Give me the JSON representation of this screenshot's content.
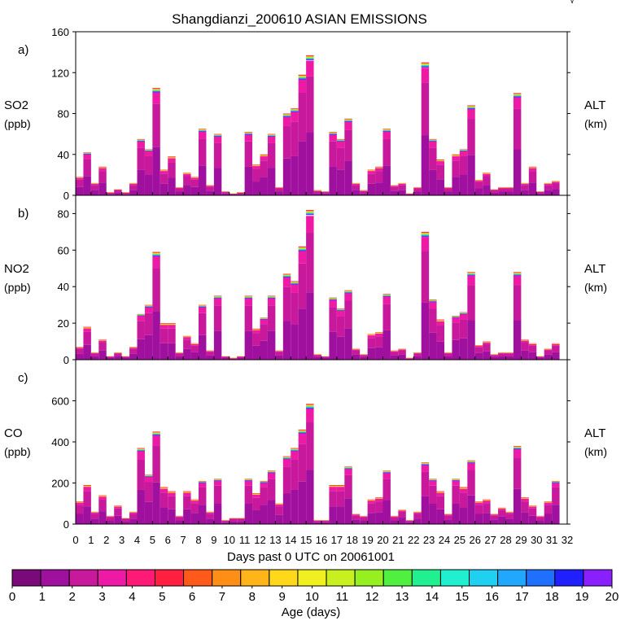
{
  "title": "Shangdianzi_200610 ASIAN EMISSIONS",
  "corner_mark": "√",
  "colorbar": {
    "label": "Age (days)",
    "ticks": [
      "0",
      "1",
      "2",
      "3",
      "4",
      "5",
      "6",
      "7",
      "8",
      "9",
      "10",
      "11",
      "12",
      "13",
      "14",
      "15",
      "16",
      "17",
      "18",
      "19",
      "20"
    ],
    "colors": [
      "#7a0a7a",
      "#a0109e",
      "#c8189c",
      "#ee1aa6",
      "#ff1a78",
      "#ff2040",
      "#ff5a1a",
      "#ff8e14",
      "#ffb41a",
      "#ffd81c",
      "#f0f020",
      "#c8f020",
      "#96f020",
      "#50f040",
      "#20f090",
      "#20f0d0",
      "#20d0f0",
      "#20a8ff",
      "#2070ff",
      "#2020ff",
      "#8a20ff"
    ]
  },
  "chart_data": [
    {
      "panel": "a)",
      "type": "bar",
      "title": "Shangdianzi_200610 ASIAN EMISSIONS",
      "ylabel": "SO2",
      "yunits": "(ppb)",
      "right_label": "ALT",
      "right_units": "(km)",
      "ylim": [
        0,
        160
      ],
      "yticks": [
        "0",
        "40",
        "80",
        "120",
        "160"
      ],
      "xlim": [
        0,
        32
      ],
      "x": [
        0,
        0.5,
        1,
        1.5,
        2,
        2.5,
        3,
        3.5,
        4,
        4.5,
        5,
        5.5,
        6,
        6.5,
        7,
        7.5,
        8,
        8.5,
        9,
        9.5,
        10,
        10.5,
        11,
        11.5,
        12,
        12.5,
        13,
        13.5,
        14,
        14.5,
        15,
        15.5,
        16,
        16.5,
        17,
        17.5,
        18,
        18.5,
        19,
        19.5,
        20,
        20.5,
        21,
        21.5,
        22,
        22.5,
        23,
        23.5,
        24,
        24.5,
        25,
        25.5,
        26,
        26.5,
        27,
        27.5,
        28,
        28.5,
        29,
        29.5,
        30,
        30.5,
        31,
        31.5
      ],
      "values": [
        18,
        42,
        12,
        28,
        3,
        6,
        3,
        12,
        55,
        45,
        105,
        25,
        38,
        8,
        22,
        18,
        65,
        10,
        60,
        4,
        2,
        3,
        62,
        30,
        40,
        60,
        8,
        80,
        85,
        118,
        137,
        5,
        4,
        62,
        55,
        75,
        12,
        5,
        25,
        28,
        65,
        10,
        12,
        2,
        8,
        130,
        55,
        35,
        8,
        40,
        45,
        88,
        15,
        22,
        6,
        8,
        8,
        100,
        12,
        28,
        4,
        12,
        14,
        0
      ]
    },
    {
      "panel": "b)",
      "type": "bar",
      "ylabel": "NO2",
      "yunits": "(ppb)",
      "right_label": "ALT",
      "right_units": "(km)",
      "ylim": [
        0,
        90
      ],
      "yticks": [
        "0",
        "20",
        "40",
        "60",
        "80"
      ],
      "xlim": [
        0,
        32
      ],
      "x": [
        0,
        0.5,
        1,
        1.5,
        2,
        2.5,
        3,
        3.5,
        4,
        4.5,
        5,
        5.5,
        6,
        6.5,
        7,
        7.5,
        8,
        8.5,
        9,
        9.5,
        10,
        10.5,
        11,
        11.5,
        12,
        12.5,
        13,
        13.5,
        14,
        14.5,
        15,
        15.5,
        16,
        16.5,
        17,
        17.5,
        18,
        18.5,
        19,
        19.5,
        20,
        20.5,
        21,
        21.5,
        22,
        22.5,
        23,
        23.5,
        24,
        24.5,
        25,
        25.5,
        26,
        26.5,
        27,
        27.5,
        28,
        28.5,
        29,
        29.5,
        30,
        30.5,
        31,
        31.5
      ],
      "values": [
        7,
        18,
        4,
        11,
        2,
        4,
        2,
        7,
        25,
        30,
        59,
        20,
        20,
        4,
        13,
        9,
        30,
        5,
        35,
        2,
        1,
        2,
        35,
        17,
        23,
        35,
        5,
        47,
        43,
        62,
        82,
        3,
        2,
        34,
        28,
        38,
        6,
        3,
        14,
        15,
        36,
        5,
        6,
        1,
        4,
        70,
        33,
        22,
        4,
        24,
        26,
        48,
        8,
        10,
        3,
        4,
        4,
        48,
        11,
        9,
        2,
        6,
        9,
        0
      ]
    },
    {
      "panel": "c)",
      "type": "bar",
      "ylabel": "CO",
      "yunits": "(ppb)",
      "right_label": "ALT",
      "right_units": "(km)",
      "ylim": [
        0,
        800
      ],
      "yticks": [
        "0",
        "200",
        "400",
        "600"
      ],
      "xlim": [
        0,
        32
      ],
      "xticks": [
        "0",
        "1",
        "2",
        "3",
        "4",
        "5",
        "6",
        "7",
        "8",
        "9",
        "10",
        "11",
        "12",
        "13",
        "14",
        "15",
        "16",
        "17",
        "18",
        "19",
        "20",
        "21",
        "22",
        "23",
        "24",
        "25",
        "26",
        "27",
        "28",
        "29",
        "30",
        "31",
        "32"
      ],
      "xlabel": "Days past 0 UTC on 20061001",
      "x": [
        0,
        0.5,
        1,
        1.5,
        2,
        2.5,
        3,
        3.5,
        4,
        4.5,
        5,
        5.5,
        6,
        6.5,
        7,
        7.5,
        8,
        8.5,
        9,
        9.5,
        10,
        10.5,
        11,
        11.5,
        12,
        12.5,
        13,
        13.5,
        14,
        14.5,
        15,
        15.5,
        16,
        16.5,
        17,
        17.5,
        18,
        18.5,
        19,
        19.5,
        20,
        20.5,
        21,
        21.5,
        22,
        22.5,
        23,
        23.5,
        24,
        24.5,
        25,
        25.5,
        26,
        26.5,
        27,
        27.5,
        28,
        28.5,
        29,
        29.5,
        30,
        30.5,
        31,
        31.5
      ],
      "values": [
        110,
        190,
        60,
        140,
        40,
        90,
        30,
        60,
        370,
        240,
        450,
        180,
        160,
        40,
        160,
        120,
        210,
        60,
        220,
        20,
        30,
        30,
        220,
        150,
        210,
        260,
        100,
        330,
        370,
        460,
        585,
        20,
        20,
        190,
        190,
        280,
        50,
        40,
        120,
        130,
        260,
        40,
        70,
        20,
        60,
        300,
        220,
        160,
        50,
        220,
        180,
        310,
        110,
        120,
        50,
        80,
        60,
        380,
        130,
        90,
        40,
        110,
        210,
        0
      ]
    }
  ]
}
